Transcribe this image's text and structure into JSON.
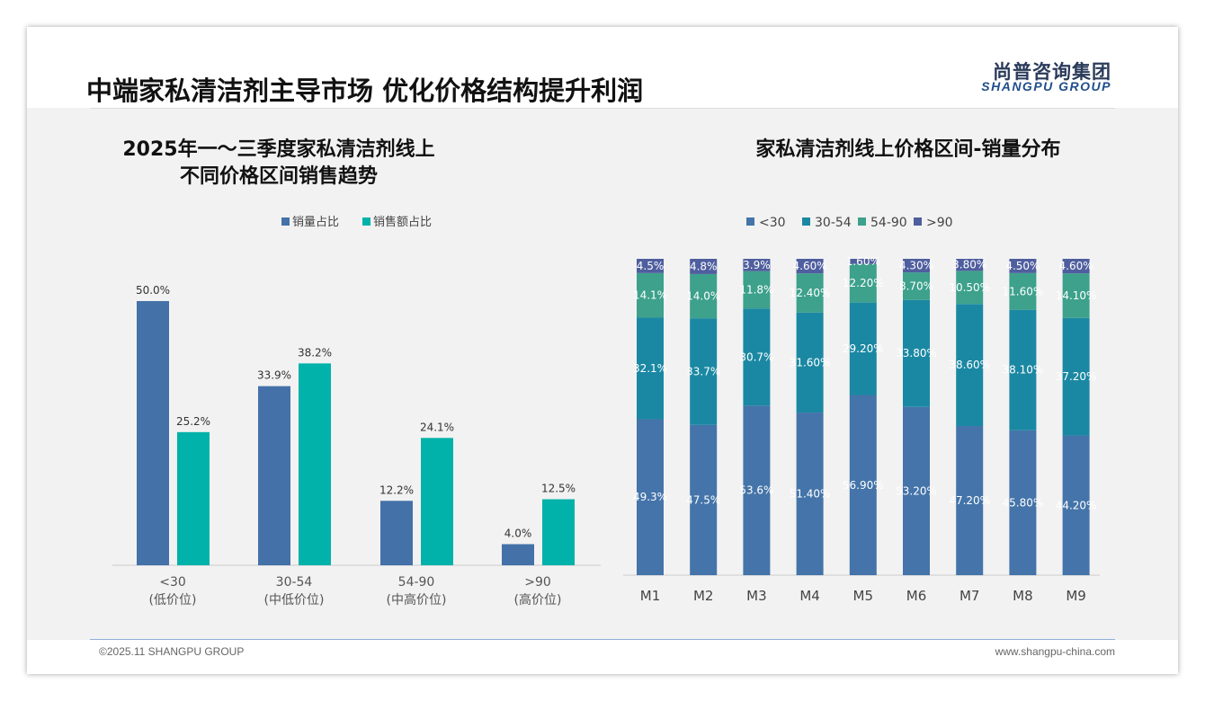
{
  "header": {
    "title": "中端家私清洁剂主导市场 优化价格结构提升利润",
    "logo_cn": "尚普咨询集团",
    "logo_en": "SHANGPU GROUP"
  },
  "footer": {
    "copyright": "©2025.11 SHANGPU GROUP",
    "website": "www.shangpu-china.com"
  },
  "colors": {
    "vol": "#4472a8",
    "amt": "#00b2a9",
    "lt30": "#4474a9",
    "r30_54": "#1b88a3",
    "r54_90": "#3da18c",
    "gt90": "#4f5e9e"
  },
  "chart_data": [
    {
      "type": "bar",
      "title_line1": "2025年一～三季度家私清洁剂线上",
      "title_line2": "不同价格区间销售趋势",
      "categories": [
        "<30",
        "30-54",
        "54-90",
        ">90"
      ],
      "category_sub": [
        "(低价位)",
        "(中低价位)",
        "(中高价位)",
        "(高价位)"
      ],
      "series": [
        {
          "name": "销量占比",
          "values": [
            50.0,
            33.9,
            12.2,
            4.0
          ]
        },
        {
          "name": "销售额占比",
          "values": [
            25.2,
            38.2,
            24.1,
            12.5
          ]
        }
      ],
      "unit": "%",
      "ylim": [
        0,
        50
      ]
    },
    {
      "type": "bar",
      "stacked": true,
      "title": "家私清洁剂线上价格区间-销量分布",
      "categories": [
        "M1",
        "M2",
        "M3",
        "M4",
        "M5",
        "M6",
        "M7",
        "M8",
        "M9"
      ],
      "series": [
        {
          "name": "<30",
          "values": [
            49.3,
            47.5,
            53.6,
            51.4,
            56.9,
            53.2,
            47.2,
            45.8,
            44.2
          ],
          "labels": [
            "49.3%",
            "47.5%",
            "53.6%",
            "51.40%",
            "56.90%",
            "53.20%",
            "47.20%",
            "45.80%",
            "44.20%"
          ]
        },
        {
          "name": "30-54",
          "values": [
            32.1,
            33.7,
            30.7,
            31.6,
            29.2,
            33.8,
            38.6,
            38.1,
            37.2
          ],
          "labels": [
            "32.1%",
            "33.7%",
            "30.7%",
            "31.60%",
            "29.20%",
            "33.80%",
            "38.60%",
            "38.10%",
            "37.20%"
          ]
        },
        {
          "name": "54-90",
          "values": [
            14.1,
            14.0,
            11.8,
            12.4,
            12.2,
            8.7,
            10.5,
            11.6,
            14.1
          ],
          "labels": [
            "14.1%",
            "14.0%",
            "11.8%",
            "12.40%",
            "12.20%",
            "8.70%",
            "10.50%",
            "11.60%",
            "14.10%"
          ]
        },
        {
          "name": ">90",
          "values": [
            4.5,
            4.8,
            3.9,
            4.6,
            1.6,
            4.3,
            3.8,
            4.5,
            4.6
          ],
          "labels": [
            "4.5%",
            "4.8%",
            "3.9%",
            "4.60%",
            "1.60%",
            "4.30%",
            "3.80%",
            "4.50%",
            "4.60%"
          ]
        }
      ],
      "ylim": [
        0,
        100
      ]
    }
  ]
}
